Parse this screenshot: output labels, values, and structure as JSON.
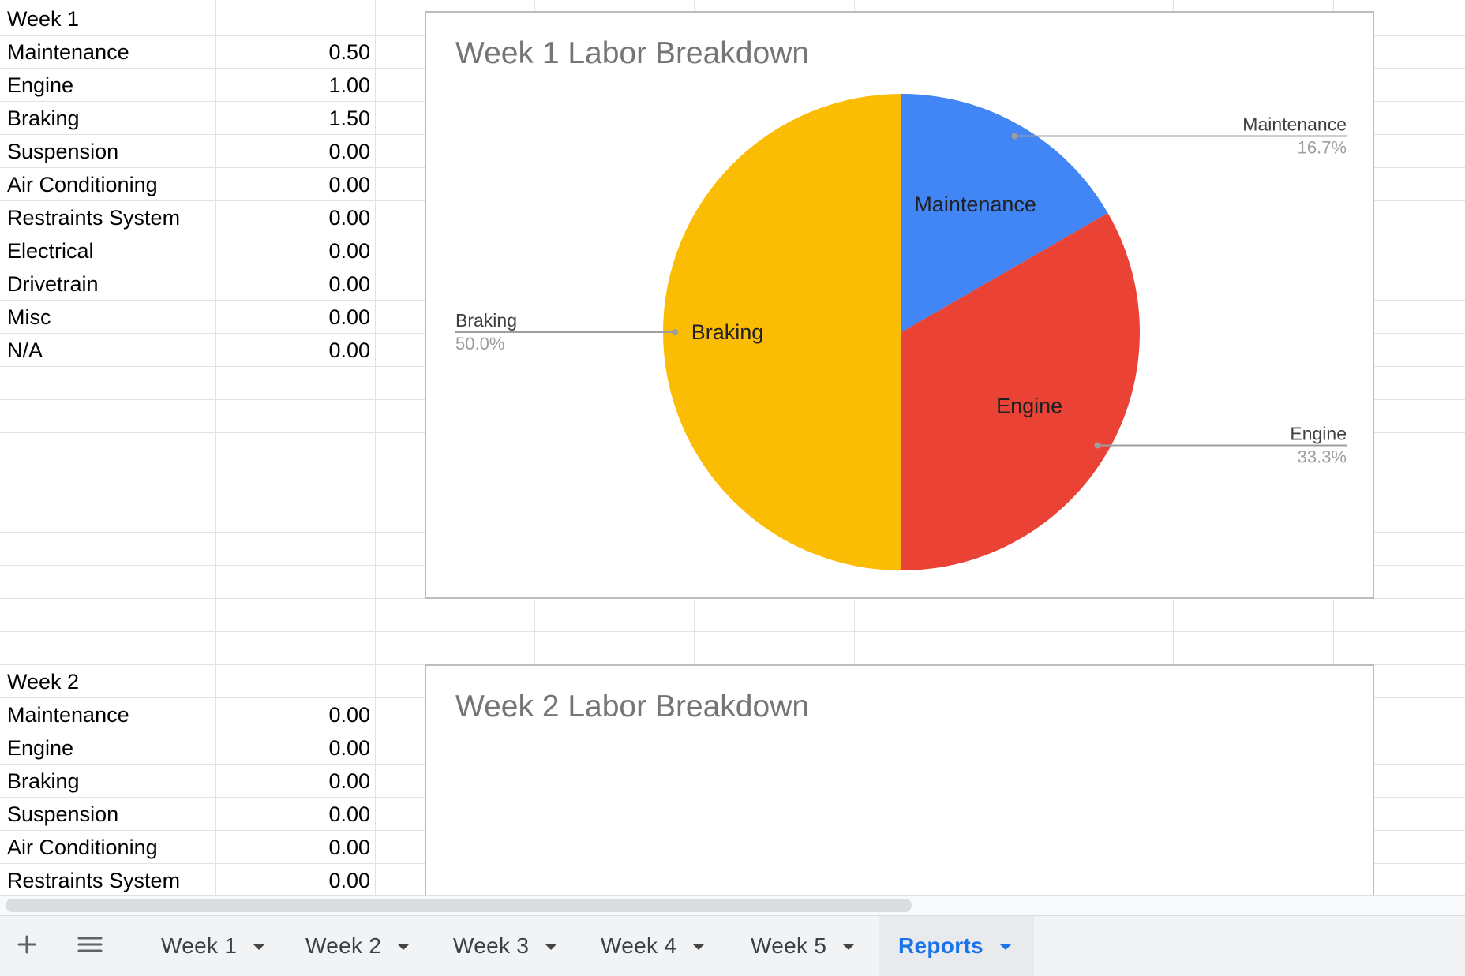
{
  "week1": {
    "header": "Week 1",
    "rows": [
      {
        "label": "Maintenance",
        "value": "0.50"
      },
      {
        "label": "Engine",
        "value": "1.00"
      },
      {
        "label": "Braking",
        "value": "1.50"
      },
      {
        "label": "Suspension",
        "value": "0.00"
      },
      {
        "label": "Air Conditioning",
        "value": "0.00"
      },
      {
        "label": "Restraints System",
        "value": "0.00"
      },
      {
        "label": "Electrical",
        "value": "0.00"
      },
      {
        "label": "Drivetrain",
        "value": "0.00"
      },
      {
        "label": "Misc",
        "value": "0.00"
      },
      {
        "label": "N/A",
        "value": "0.00"
      }
    ]
  },
  "week2": {
    "header": "Week 2",
    "rows": [
      {
        "label": "Maintenance",
        "value": "0.00"
      },
      {
        "label": "Engine",
        "value": "0.00"
      },
      {
        "label": "Braking",
        "value": "0.00"
      },
      {
        "label": "Suspension",
        "value": "0.00"
      },
      {
        "label": "Air Conditioning",
        "value": "0.00"
      },
      {
        "label": "Restraints System",
        "value": "0.00"
      }
    ]
  },
  "chart_data": [
    {
      "type": "pie",
      "title": "Week 1 Labor Breakdown",
      "slices": [
        {
          "name": "Maintenance",
          "value": 0.5,
          "percent_label": "16.7%",
          "color": "#4285f4"
        },
        {
          "name": "Engine",
          "value": 1.0,
          "percent_label": "33.3%",
          "color": "#ea4335"
        },
        {
          "name": "Braking",
          "value": 1.5,
          "percent_label": "50.0%",
          "color": "#fbbc04"
        }
      ]
    },
    {
      "type": "pie",
      "title": "Week 2 Labor Breakdown",
      "slices": []
    }
  ],
  "tabbar": {
    "add_icon": "plus-icon",
    "all_sheets_icon": "hamburger-menu-icon",
    "tabs": [
      {
        "label": "Week 1",
        "active": false
      },
      {
        "label": "Week 2",
        "active": false
      },
      {
        "label": "Week 3",
        "active": false
      },
      {
        "label": "Week 4",
        "active": false
      },
      {
        "label": "Week 5",
        "active": false
      },
      {
        "label": "Reports",
        "active": true
      }
    ]
  },
  "colors": {
    "active_tab": "#1a73e8",
    "chart_title": "#757575"
  }
}
